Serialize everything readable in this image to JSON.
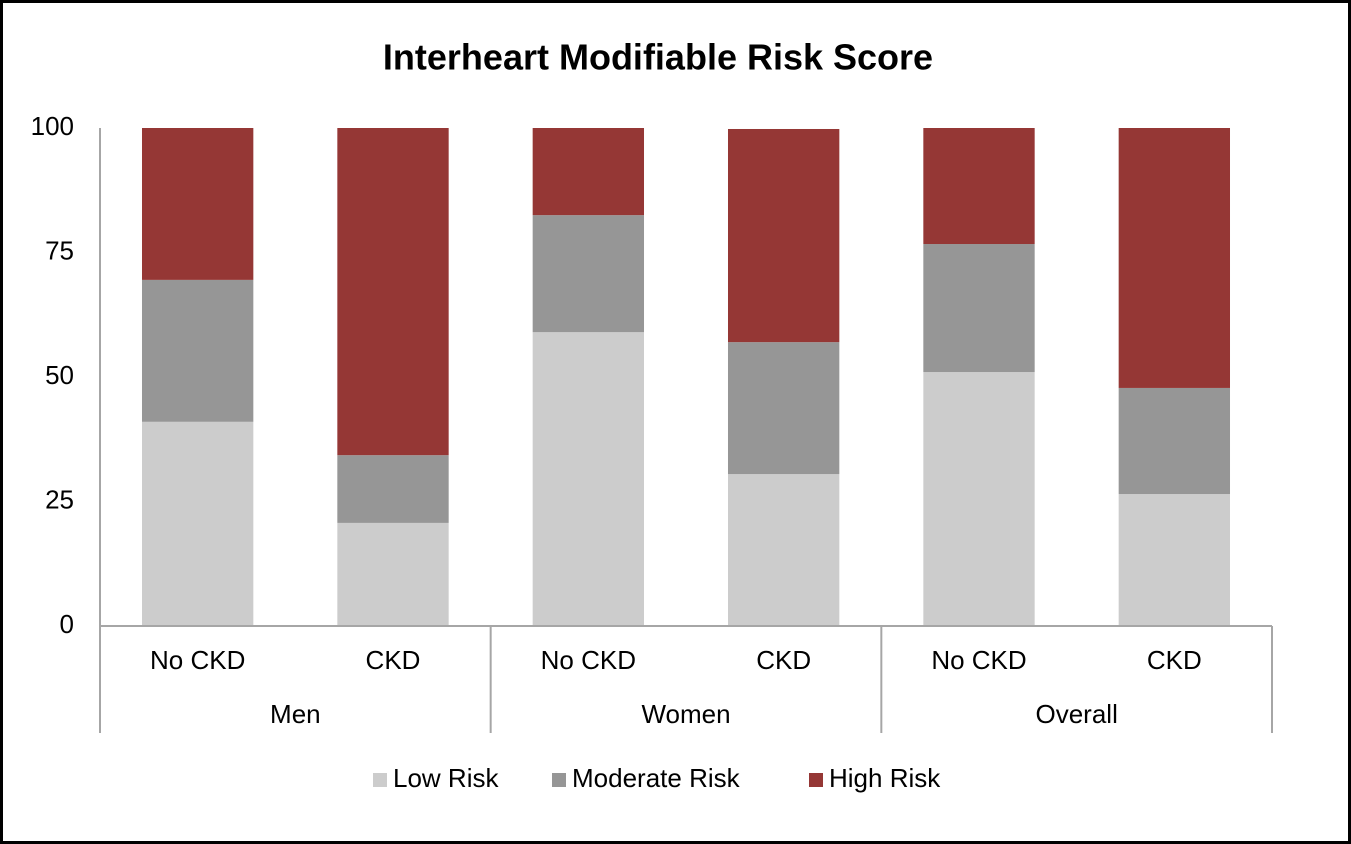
{
  "chart_data": {
    "type": "stacked_bar",
    "title": "Interheart Modifiable Risk Score",
    "categories": [
      "No CKD",
      "CKD",
      "No CKD",
      "CKD",
      "No CKD",
      "CKD"
    ],
    "groups": [
      "Men",
      "Women",
      "Overall"
    ],
    "series": [
      {
        "name": "Low Risk",
        "color": "#cccccc",
        "values": [
          41.0,
          20.7,
          59.0,
          30.5,
          51.0,
          26.5
        ]
      },
      {
        "name": "Moderate Risk",
        "color": "#969696",
        "values": [
          28.5,
          13.6,
          23.5,
          26.5,
          25.7,
          21.3
        ]
      },
      {
        "name": "High Risk",
        "color": "#953735",
        "values": [
          30.5,
          65.7,
          17.5,
          42.8,
          23.3,
          52.2
        ]
      }
    ],
    "ylim": [
      0,
      100
    ],
    "yticks": [
      0,
      25,
      50,
      75,
      100
    ],
    "grid": false,
    "legend": "bottom"
  }
}
